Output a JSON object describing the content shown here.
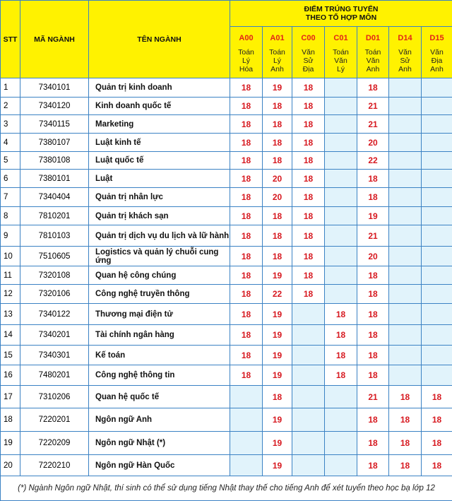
{
  "header": {
    "stt": "STT",
    "ma_nganh": "MÃ NGÀNH",
    "ten_nganh": "TÊN NGÀNH",
    "group_title_line1": "ĐIỂM TRÚNG TUYỂN",
    "group_title_line2": "THEO TỔ HỢP MÔN",
    "combos": [
      {
        "code": "A00",
        "subjects": [
          "Toán",
          "Lý",
          "Hóa"
        ]
      },
      {
        "code": "A01",
        "subjects": [
          "Toán",
          "Lý",
          "Anh"
        ]
      },
      {
        "code": "C00",
        "subjects": [
          "Văn",
          "Sử",
          "Địa"
        ]
      },
      {
        "code": "C01",
        "subjects": [
          "Toán",
          "Văn",
          "Lý"
        ]
      },
      {
        "code": "D01",
        "subjects": [
          "Toán",
          "Văn",
          "Anh"
        ]
      },
      {
        "code": "D14",
        "subjects": [
          "Văn",
          "Sử",
          "Anh"
        ]
      },
      {
        "code": "D15",
        "subjects": [
          "Văn",
          "Địa",
          "Anh"
        ]
      }
    ]
  },
  "rows": [
    {
      "stt": "1",
      "code": "7340101",
      "name": "Quản trị kinh doanh",
      "scores": [
        "18",
        "19",
        "18",
        "",
        "18",
        "",
        ""
      ]
    },
    {
      "stt": "2",
      "code": "7340120",
      "name": "Kinh doanh quốc tế",
      "scores": [
        "18",
        "18",
        "18",
        "",
        "21",
        "",
        ""
      ]
    },
    {
      "stt": "3",
      "code": "7340115",
      "name": "Marketing",
      "scores": [
        "18",
        "18",
        "18",
        "",
        "21",
        "",
        ""
      ]
    },
    {
      "stt": "4",
      "code": "7380107",
      "name": "Luật kinh tế",
      "scores": [
        "18",
        "18",
        "18",
        "",
        "20",
        "",
        ""
      ]
    },
    {
      "stt": "5",
      "code": "7380108",
      "name": "Luật quốc tế",
      "scores": [
        "18",
        "18",
        "18",
        "",
        "22",
        "",
        ""
      ]
    },
    {
      "stt": "6",
      "code": "7380101",
      "name": "Luật",
      "scores": [
        "18",
        "20",
        "18",
        "",
        "18",
        "",
        ""
      ]
    },
    {
      "stt": "7",
      "code": "7340404",
      "name": "Quản trị nhân lực",
      "scores": [
        "18",
        "20",
        "18",
        "",
        "18",
        "",
        ""
      ]
    },
    {
      "stt": "8",
      "code": "7810201",
      "name": "Quản trị khách sạn",
      "scores": [
        "18",
        "18",
        "18",
        "",
        "19",
        "",
        ""
      ]
    },
    {
      "stt": "9",
      "code": "7810103",
      "name": "Quản trị dịch vụ du lịch và lữ hành",
      "scores": [
        "18",
        "18",
        "18",
        "",
        "21",
        "",
        ""
      ]
    },
    {
      "stt": "10",
      "code": "7510605",
      "name": "Logistics và quản lý chuỗi cung ứng",
      "scores": [
        "18",
        "18",
        "18",
        "",
        "20",
        "",
        ""
      ]
    },
    {
      "stt": "11",
      "code": "7320108",
      "name": "Quan hệ công chúng",
      "scores": [
        "18",
        "19",
        "18",
        "",
        "18",
        "",
        ""
      ]
    },
    {
      "stt": "12",
      "code": "7320106",
      "name": "Công nghệ truyền thông",
      "scores": [
        "18",
        "22",
        "18",
        "",
        "18",
        "",
        ""
      ]
    },
    {
      "stt": "13",
      "code": "7340122",
      "name": "Thương mại điện tử",
      "scores": [
        "18",
        "19",
        "",
        "18",
        "18",
        "",
        ""
      ]
    },
    {
      "stt": "14",
      "code": "7340201",
      "name": "Tài chính ngân hàng",
      "scores": [
        "18",
        "19",
        "",
        "18",
        "18",
        "",
        ""
      ]
    },
    {
      "stt": "15",
      "code": "7340301",
      "name": "Kế toán",
      "scores": [
        "18",
        "19",
        "",
        "18",
        "18",
        "",
        ""
      ]
    },
    {
      "stt": "16",
      "code": "7480201",
      "name": "Công nghệ thông tin",
      "scores": [
        "18",
        "19",
        "",
        "18",
        "18",
        "",
        ""
      ]
    },
    {
      "stt": "17",
      "code": "7310206",
      "name": "Quan hệ quốc tế",
      "scores": [
        "",
        "18",
        "",
        "",
        "21",
        "18",
        "18"
      ]
    },
    {
      "stt": "18",
      "code": "7220201",
      "name": "Ngôn ngữ Anh",
      "scores": [
        "",
        "19",
        "",
        "",
        "18",
        "18",
        "18"
      ]
    },
    {
      "stt": "19",
      "code": "7220209",
      "name": "Ngôn ngữ Nhật (*)",
      "scores": [
        "",
        "19",
        "",
        "",
        "18",
        "18",
        "18"
      ]
    },
    {
      "stt": "20",
      "code": "7220210",
      "name": "Ngôn ngữ Hàn Quốc",
      "scores": [
        "",
        "19",
        "",
        "",
        "18",
        "18",
        "18"
      ]
    }
  ],
  "footnote": "(*) Ngành Ngôn ngữ Nhật, thí sinh có thể sử dụng tiếng Nhật thay thế cho tiếng Anh để xét tuyển theo học bạ lớp 12",
  "colors": {
    "header_bg": "#fff200",
    "score": "#d71920",
    "combo_code": "#e2231a",
    "empty_cell": "#e1f3fb",
    "border": "#3b82c4"
  }
}
